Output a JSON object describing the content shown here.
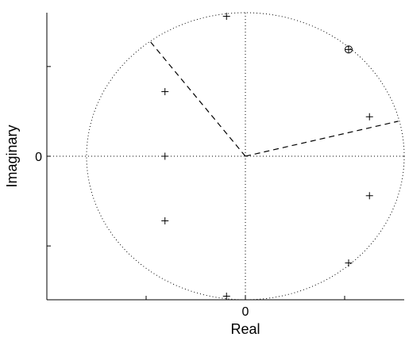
{
  "chart_data": {
    "type": "scatter",
    "title": "",
    "xlabel": "Real",
    "ylabel": "Imaginary",
    "xlim": [
      -2,
      1.6
    ],
    "ylim": [
      -1.6,
      1.6
    ],
    "x_ticks": [
      {
        "value": 0,
        "label": "0"
      }
    ],
    "y_ticks": [
      {
        "value": 0,
        "label": "0"
      }
    ],
    "grid": false,
    "unit_circle": {
      "center": [
        0,
        0
      ],
      "radius": 1.6,
      "style": "dotted"
    },
    "reference_lines": [
      {
        "x": 0,
        "style": "dotted"
      },
      {
        "y": 0,
        "style": "dotted"
      }
    ],
    "dashed_segments": [
      {
        "from": [
          0,
          0
        ],
        "to": [
          -0.96,
          1.28
        ]
      },
      {
        "from": [
          0,
          0
        ],
        "to": [
          1.54,
          0.39
        ]
      }
    ],
    "series": [
      {
        "marker": "+",
        "x": [
          -0.19,
          -0.81,
          -0.81,
          -0.81,
          -0.19,
          1.25,
          1.25,
          1.04
        ],
        "y": [
          1.56,
          0.72,
          0,
          -0.72,
          -1.56,
          0.44,
          -0.44,
          -1.19
        ]
      },
      {
        "marker": "circled-plus",
        "x": [
          1.04
        ],
        "y": [
          1.19
        ]
      }
    ]
  }
}
